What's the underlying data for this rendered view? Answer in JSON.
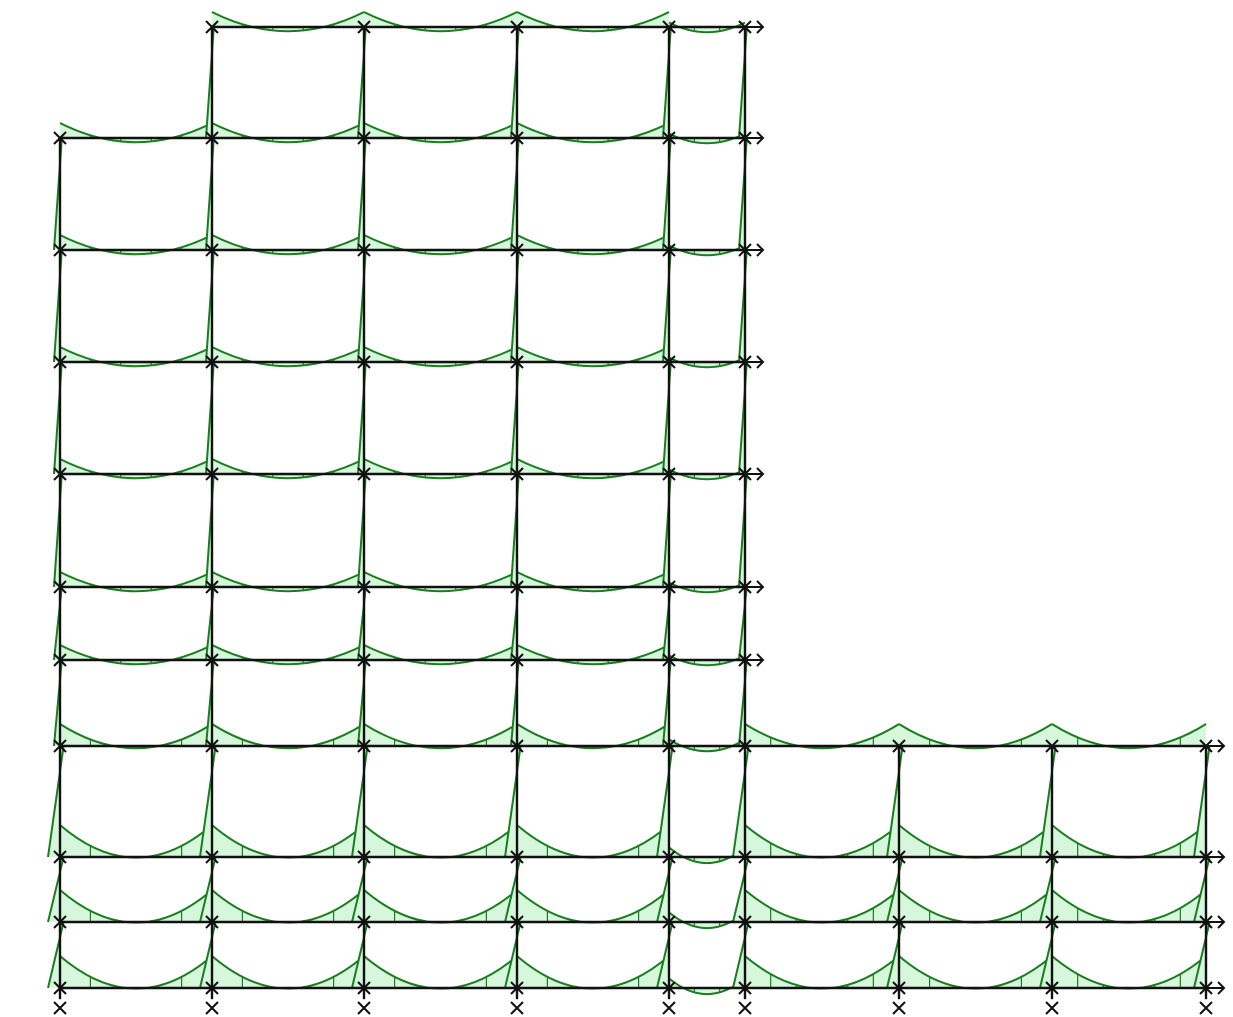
{
  "diagram": {
    "type": "frame-bending-moment",
    "colors": {
      "member": "#111111",
      "moment_line": "#1a7d1f",
      "moment_fill": "#d6f7dc",
      "background": "#ffffff"
    },
    "icons": {
      "node": "x-mark-icon",
      "free_end": "arrow-right-icon"
    },
    "levels": [
      {
        "id": "L0",
        "columns": [
          0,
          1,
          2,
          3,
          4,
          5,
          6,
          7,
          8
        ]
      },
      {
        "id": "L1",
        "columns": [
          0,
          1,
          2,
          3,
          4,
          5,
          6,
          7,
          8
        ]
      },
      {
        "id": "L2",
        "columns": [
          0,
          1,
          2,
          3,
          4,
          5,
          6,
          7,
          8
        ]
      },
      {
        "id": "L3",
        "columns": [
          0,
          1,
          2,
          3,
          4,
          5,
          6,
          7,
          8
        ]
      },
      {
        "id": "L4",
        "columns": [
          0,
          1,
          2,
          3,
          4,
          5
        ]
      },
      {
        "id": "L5",
        "columns": [
          0,
          1,
          2,
          3,
          4,
          5
        ]
      },
      {
        "id": "L6",
        "columns": [
          0,
          1,
          2,
          3,
          4,
          5
        ]
      },
      {
        "id": "L7",
        "columns": [
          0,
          1,
          2,
          3,
          4,
          5
        ]
      },
      {
        "id": "L8",
        "columns": [
          0,
          1,
          2,
          3,
          4,
          5
        ]
      },
      {
        "id": "L9",
        "columns": [
          0,
          1,
          2,
          3,
          4,
          5
        ]
      },
      {
        "id": "L10",
        "columns": [
          1,
          2,
          3,
          4,
          5
        ]
      }
    ]
  }
}
